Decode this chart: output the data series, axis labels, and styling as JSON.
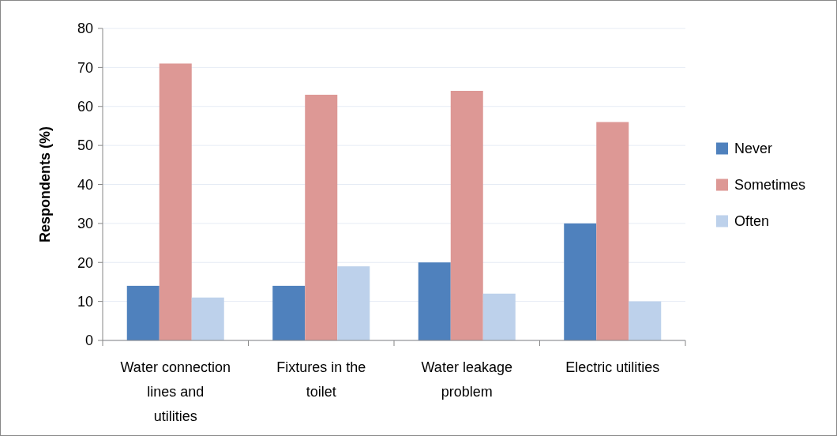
{
  "chart_data": {
    "type": "bar",
    "ylabel": "Respondents (%)",
    "categories": [
      "Water connection lines and utilities",
      "Fixtures in the toilet",
      "Water leakage problem",
      "Electric utilities"
    ],
    "series": [
      {
        "name": "Never",
        "color": "#4f81bd",
        "values": [
          14,
          14,
          20,
          30
        ]
      },
      {
        "name": "Sometimes",
        "color": "#dd9895",
        "values": [
          71,
          63,
          64,
          56
        ]
      },
      {
        "name": "Often",
        "color": "#bdd1eb",
        "values": [
          11,
          19,
          12,
          10
        ]
      }
    ],
    "ylim": [
      0,
      80
    ],
    "yticks": [
      0,
      10,
      20,
      30,
      40,
      50,
      60,
      70,
      80
    ],
    "grid": "y",
    "legend": "right"
  }
}
